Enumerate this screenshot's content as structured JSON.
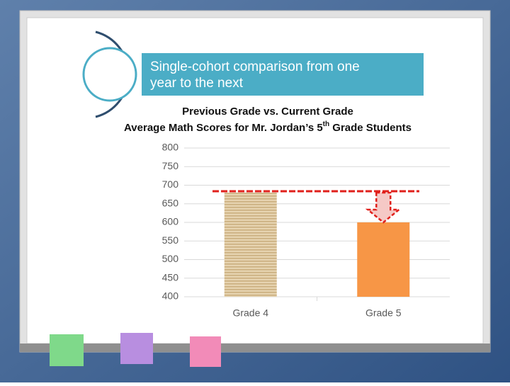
{
  "header": {
    "text_lines": [
      "Single-cohort comparison from one",
      "year to the next"
    ]
  },
  "chart_data": {
    "type": "bar",
    "title": "Previous Grade vs. Current Grade",
    "subtitle_parts": [
      "Average Math Scores for Mr. Jordan’s 5",
      "th",
      " Grade Students"
    ],
    "categories": [
      "Grade 4",
      "Grade 5"
    ],
    "values": [
      680,
      600
    ],
    "colors": [
      "#dcc59c",
      "#f79646"
    ],
    "ylim": [
      400,
      800
    ],
    "yticks": [
      400,
      450,
      500,
      550,
      600,
      650,
      700,
      750,
      800
    ],
    "grid": true
  }
}
